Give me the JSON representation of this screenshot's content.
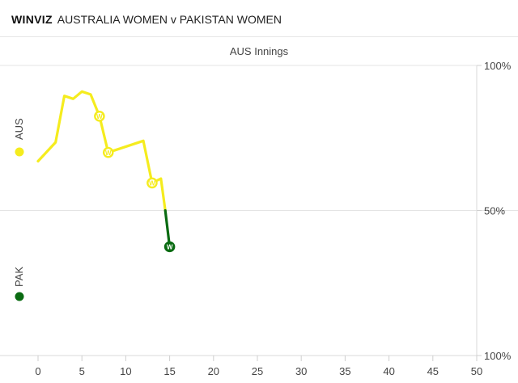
{
  "header": {
    "brand": "WINVIZ",
    "match": "AUSTRALIA WOMEN v PAKISTAN WOMEN"
  },
  "chart_data": {
    "type": "line",
    "title": "AUS Innings",
    "xlabel": "",
    "ylabel": "",
    "xlim": [
      -3,
      50
    ],
    "ylim": [
      0,
      100
    ],
    "x_ticks": [
      0,
      5,
      10,
      15,
      20,
      25,
      30,
      35,
      40,
      45,
      50
    ],
    "y_tick_labels": [
      {
        "value": 100,
        "label": "100%"
      },
      {
        "value": 50,
        "label": "50%"
      },
      {
        "value": 0,
        "label": "100%"
      }
    ],
    "y_tick_labels_list": [
      "100%",
      "50%",
      "100%"
    ],
    "teams": {
      "top": {
        "label": "AUS",
        "color": "#f5ec1e"
      },
      "bottom": {
        "label": "PAK",
        "color": "#0a6b12"
      }
    },
    "series": [
      {
        "team": "AUS",
        "color": "#f5ec1e",
        "points": [
          [
            0,
            67
          ],
          [
            2,
            73.5
          ],
          [
            3,
            89.5
          ],
          [
            4,
            88.5
          ],
          [
            5,
            91
          ],
          [
            6,
            90
          ],
          [
            7,
            82.5
          ],
          [
            8,
            70
          ],
          [
            12,
            74
          ],
          [
            13,
            59.5
          ],
          [
            14,
            61
          ],
          [
            14.5,
            50
          ]
        ]
      },
      {
        "team": "PAK",
        "color": "#0a6b12",
        "points": [
          [
            14.5,
            50
          ],
          [
            15,
            37.5
          ]
        ]
      }
    ],
    "wickets": [
      {
        "over": 7,
        "pct": 82.5,
        "label": "W",
        "team": "AUS"
      },
      {
        "over": 8,
        "pct": 70,
        "label": "W",
        "team": "AUS"
      },
      {
        "over": 13,
        "pct": 59.5,
        "label": "W",
        "team": "AUS"
      },
      {
        "over": 15,
        "pct": 37.5,
        "label": "W",
        "team": "PAK"
      }
    ]
  }
}
